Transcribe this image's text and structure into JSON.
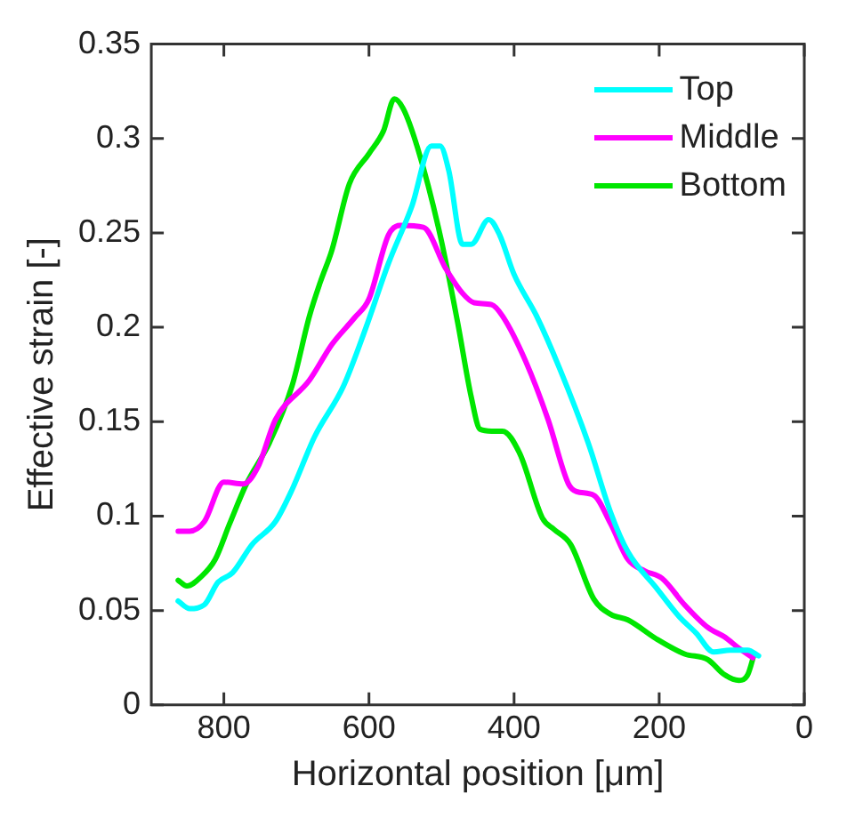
{
  "chart_data": {
    "type": "line",
    "xlabel": "Horizontal position [μm]",
    "ylabel": "Effective strain [-]",
    "xlim": [
      900,
      0
    ],
    "xticks": [
      800,
      600,
      400,
      200,
      0
    ],
    "ylim": [
      0,
      0.35
    ],
    "yticks": [
      0,
      0.05,
      0.1,
      0.15,
      0.2,
      0.25,
      0.3,
      0.35
    ],
    "grid": false,
    "legend": "top right",
    "marker": "none",
    "line_style": "solid",
    "series": [
      {
        "name": "Top",
        "color": "#00ffff",
        "x": [
          863,
          847,
          827,
          808,
          788,
          761,
          729,
          706,
          675,
          635,
          604,
          573,
          541,
          514,
          502,
          490,
          471,
          459,
          435,
          420,
          400,
          369,
          337,
          298,
          267,
          243,
          204,
          173,
          149,
          125,
          102,
          78,
          63
        ],
        "values": [
          0.055,
          0.051,
          0.053,
          0.065,
          0.07,
          0.085,
          0.097,
          0.114,
          0.142,
          0.169,
          0.2,
          0.234,
          0.264,
          0.296,
          0.296,
          0.283,
          0.244,
          0.244,
          0.257,
          0.249,
          0.228,
          0.206,
          0.178,
          0.139,
          0.102,
          0.081,
          0.062,
          0.047,
          0.038,
          0.028,
          0.029,
          0.029,
          0.026
        ]
      },
      {
        "name": "Middle",
        "color": "#ff00ff",
        "x": [
          863,
          847,
          827,
          800,
          773,
          753,
          729,
          682,
          651,
          620,
          600,
          573,
          557,
          525,
          494,
          471,
          455,
          431,
          416,
          384,
          353,
          325,
          314,
          290,
          267,
          243,
          220,
          196,
          165,
          133,
          110,
          90,
          71
        ],
        "values": [
          0.092,
          0.092,
          0.097,
          0.118,
          0.117,
          0.126,
          0.151,
          0.172,
          0.191,
          0.205,
          0.215,
          0.249,
          0.254,
          0.253,
          0.231,
          0.218,
          0.213,
          0.212,
          0.206,
          0.182,
          0.151,
          0.117,
          0.113,
          0.111,
          0.096,
          0.077,
          0.071,
          0.067,
          0.053,
          0.041,
          0.036,
          0.03,
          0.025
        ]
      },
      {
        "name": "Bottom",
        "color": "#00e600",
        "x": [
          863,
          851,
          831,
          812,
          792,
          769,
          737,
          706,
          682,
          667,
          651,
          627,
          600,
          580,
          565,
          553,
          533,
          502,
          478,
          459,
          447,
          431,
          416,
          392,
          361,
          345,
          322,
          290,
          267,
          243,
          204,
          165,
          133,
          110,
          90,
          78,
          69
        ],
        "values": [
          0.066,
          0.063,
          0.068,
          0.077,
          0.096,
          0.117,
          0.139,
          0.169,
          0.206,
          0.224,
          0.241,
          0.276,
          0.292,
          0.304,
          0.321,
          0.316,
          0.295,
          0.249,
          0.203,
          0.163,
          0.146,
          0.145,
          0.145,
          0.133,
          0.099,
          0.093,
          0.085,
          0.056,
          0.048,
          0.045,
          0.035,
          0.027,
          0.024,
          0.016,
          0.013,
          0.016,
          0.027
        ]
      }
    ]
  }
}
